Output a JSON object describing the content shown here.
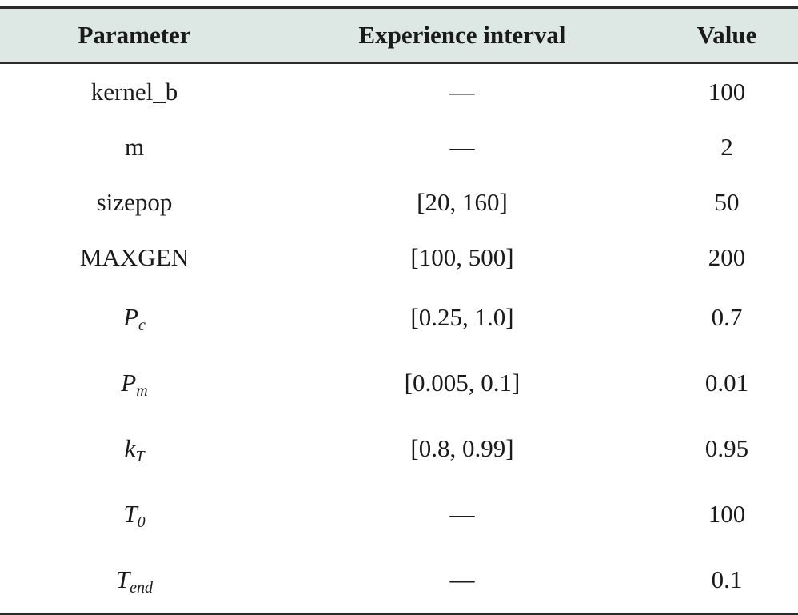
{
  "table": {
    "headers": {
      "parameter": "Parameter",
      "interval": "Experience interval",
      "value": "Value"
    },
    "rows": [
      {
        "param": "kernel_b",
        "param_sub": "",
        "italic": false,
        "interval": "—",
        "value": "100"
      },
      {
        "param": "m",
        "param_sub": "",
        "italic": false,
        "interval": "—",
        "value": "2"
      },
      {
        "param": "sizepop",
        "param_sub": "",
        "italic": false,
        "interval": "[20, 160]",
        "value": "50"
      },
      {
        "param": "MAXGEN",
        "param_sub": "",
        "italic": false,
        "interval": "[100, 500]",
        "value": "200"
      },
      {
        "param": "P",
        "param_sub": "c",
        "italic": true,
        "interval": "[0.25, 1.0]",
        "value": "0.7"
      },
      {
        "param": "P",
        "param_sub": "m",
        "italic": true,
        "interval": "[0.005, 0.1]",
        "value": "0.01"
      },
      {
        "param": "k",
        "param_sub": "T",
        "italic": true,
        "interval": "[0.8, 0.99]",
        "value": "0.95"
      },
      {
        "param": "T",
        "param_sub": "0",
        "italic": true,
        "interval": "—",
        "value": "100"
      },
      {
        "param": "T",
        "param_sub": "end",
        "italic": true,
        "interval": "—",
        "value": "0.1"
      }
    ]
  }
}
